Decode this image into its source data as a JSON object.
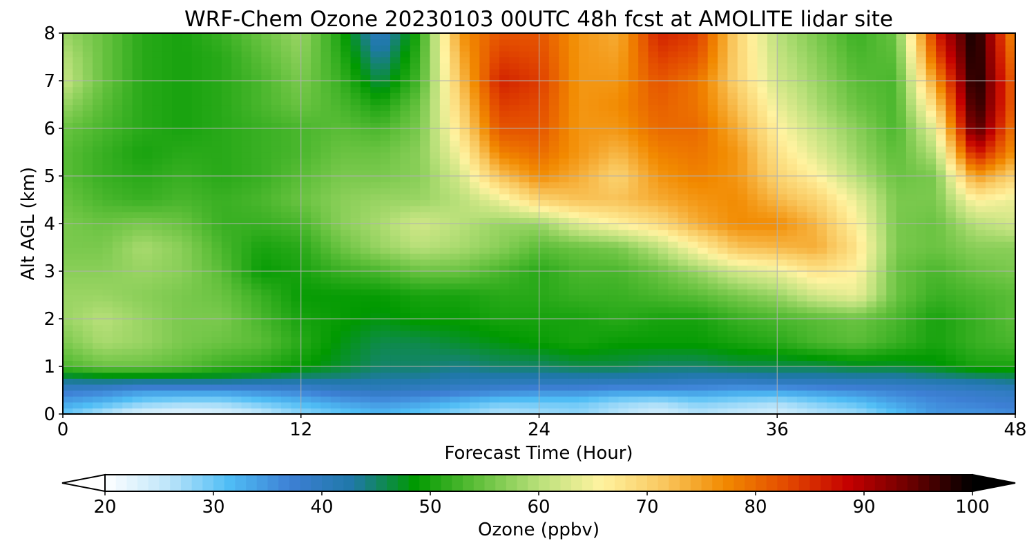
{
  "chart_data": {
    "type": "heatmap",
    "title": "WRF-Chem Ozone  20230103 00UTC 48h fcst at AMOLITE lidar site",
    "xlabel": "Forecast Time (Hour)",
    "ylabel": "Alt AGL (km)",
    "xlim": [
      0,
      48
    ],
    "ylim": [
      0,
      8
    ],
    "xticks": [
      0,
      12,
      24,
      36,
      48
    ],
    "yticks": [
      0,
      1,
      2,
      3,
      4,
      5,
      6,
      7,
      8
    ],
    "grid": true,
    "colorbar": {
      "label": "Ozone  (ppbv)",
      "range": [
        20,
        100
      ],
      "ticks": [
        20,
        30,
        40,
        50,
        60,
        70,
        80,
        90,
        100
      ],
      "extend": "both",
      "colors": [
        "#ffffff",
        "#bfe6fa",
        "#4fbdf5",
        "#3d7fd4",
        "#1f78a8",
        "#009900",
        "#5fbf3a",
        "#b9e07a",
        "#fff3a0",
        "#f9c860",
        "#f28a00",
        "#e34a00",
        "#c40000",
        "#6b0000",
        "#000000"
      ]
    },
    "x": [
      0,
      2,
      4,
      6,
      8,
      10,
      12,
      14,
      16,
      18,
      20,
      22,
      24,
      26,
      28,
      30,
      32,
      34,
      36,
      38,
      40,
      42,
      44,
      46,
      48
    ],
    "y": [
      0,
      0.25,
      0.5,
      0.75,
      1,
      1.5,
      2,
      2.5,
      3,
      3.5,
      4,
      4.5,
      5,
      5.5,
      6,
      6.5,
      7,
      7.5,
      8
    ],
    "z": [
      [
        30,
        26,
        23,
        22,
        23,
        25,
        28,
        30,
        32,
        30,
        28,
        26,
        27,
        28,
        26,
        24,
        26,
        25,
        24,
        26,
        27,
        31,
        35,
        35,
        36
      ],
      [
        34,
        32,
        29,
        28,
        28,
        30,
        32,
        34,
        35,
        34,
        32,
        30,
        30,
        30,
        28,
        27,
        29,
        28,
        27,
        29,
        31,
        34,
        36,
        37,
        38
      ],
      [
        38,
        37,
        35,
        35,
        35,
        36,
        37,
        39,
        40,
        39,
        38,
        37,
        36,
        36,
        35,
        35,
        35,
        34,
        34,
        35,
        36,
        37,
        38,
        39,
        40
      ],
      [
        45,
        46,
        46,
        46,
        46,
        45,
        44,
        44,
        43,
        43,
        42,
        42,
        42,
        42,
        42,
        42,
        41,
        41,
        42,
        42,
        42,
        42,
        43,
        44,
        45
      ],
      [
        53,
        55,
        55,
        54,
        52,
        51,
        49,
        47,
        45,
        45,
        44,
        45,
        45,
        46,
        46,
        45,
        45,
        46,
        46,
        46,
        47,
        47,
        48,
        50,
        50
      ],
      [
        56,
        59,
        58,
        56,
        55,
        54,
        51,
        48,
        46,
        46,
        47,
        48,
        49,
        50,
        49,
        49,
        49,
        50,
        51,
        53,
        54,
        52,
        50,
        52,
        53
      ],
      [
        58,
        60,
        58,
        56,
        56,
        53,
        50,
        49,
        48,
        49,
        49,
        50,
        50,
        50,
        51,
        50,
        50,
        52,
        53,
        54,
        55,
        53,
        50,
        52,
        54
      ],
      [
        58,
        58,
        57,
        56,
        55,
        52,
        49,
        49,
        49,
        50,
        50,
        51,
        51,
        52,
        52,
        53,
        54,
        56,
        58,
        62,
        64,
        55,
        52,
        53,
        54
      ],
      [
        57,
        57,
        58,
        57,
        54,
        49,
        50,
        52,
        53,
        55,
        55,
        53,
        51,
        53,
        53,
        55,
        58,
        62,
        64,
        68,
        66,
        55,
        53,
        55,
        56
      ],
      [
        56,
        56,
        59,
        57,
        53,
        50,
        51,
        55,
        58,
        60,
        59,
        57,
        54,
        55,
        56,
        60,
        66,
        72,
        73,
        74,
        68,
        56,
        55,
        57,
        57
      ],
      [
        56,
        55,
        56,
        55,
        52,
        52,
        53,
        57,
        59,
        62,
        60,
        58,
        58,
        63,
        66,
        69,
        74,
        77,
        77,
        73,
        66,
        56,
        55,
        60,
        62
      ],
      [
        55,
        53,
        52,
        53,
        52,
        53,
        55,
        57,
        58,
        58,
        60,
        64,
        70,
        72,
        72,
        74,
        76,
        77,
        73,
        70,
        64,
        56,
        56,
        66,
        64
      ],
      [
        54,
        52,
        51,
        52,
        51,
        52,
        54,
        56,
        56,
        57,
        62,
        72,
        77,
        74,
        70,
        76,
        78,
        76,
        70,
        66,
        60,
        55,
        56,
        76,
        70
      ],
      [
        54,
        52,
        50,
        51,
        51,
        52,
        53,
        55,
        55,
        57,
        65,
        78,
        80,
        76,
        73,
        78,
        79,
        76,
        68,
        63,
        58,
        54,
        60,
        88,
        76
      ],
      [
        55,
        53,
        51,
        50,
        51,
        52,
        53,
        54,
        53,
        56,
        68,
        82,
        82,
        76,
        76,
        80,
        80,
        74,
        66,
        61,
        57,
        53,
        64,
        97,
        78
      ],
      [
        58,
        54,
        51,
        50,
        51,
        53,
        55,
        53,
        50,
        55,
        70,
        84,
        83,
        76,
        77,
        81,
        79,
        72,
        64,
        59,
        55,
        53,
        70,
        99,
        80
      ],
      [
        61,
        55,
        51,
        50,
        51,
        53,
        56,
        52,
        46,
        53,
        72,
        86,
        84,
        76,
        76,
        82,
        79,
        70,
        62,
        58,
        54,
        53,
        76,
        100,
        80
      ],
      [
        60,
        55,
        51,
        50,
        51,
        54,
        57,
        51,
        43,
        52,
        74,
        84,
        83,
        76,
        75,
        84,
        82,
        70,
        61,
        57,
        53,
        54,
        82,
        100,
        78
      ],
      [
        58,
        55,
        51,
        50,
        52,
        55,
        58,
        50,
        40,
        51,
        76,
        82,
        82,
        76,
        74,
        86,
        84,
        70,
        60,
        56,
        52,
        55,
        86,
        100,
        76
      ]
    ]
  }
}
